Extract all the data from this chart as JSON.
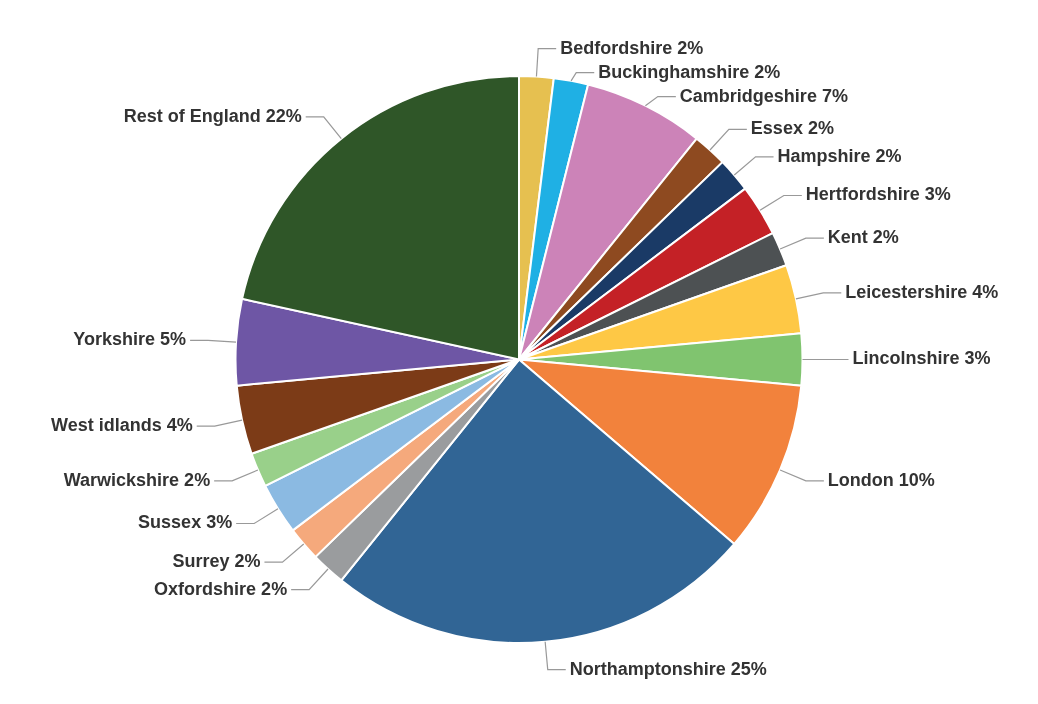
{
  "chart_data": {
    "type": "pie",
    "categories": [
      "Bedfordshire",
      "Buckinghamshire",
      "Cambridgeshire",
      "Essex",
      "Hampshire",
      "Hertfordshire",
      "Kent",
      "Leicestershire",
      "Lincolnshire",
      "London",
      "Northamptonshire",
      "Oxfordshire",
      "Surrey",
      "Sussex",
      "Warwickshire",
      "West idlands",
      "Yorkshire",
      "Rest of England"
    ],
    "values": [
      2,
      2,
      7,
      2,
      2,
      3,
      2,
      4,
      3,
      10,
      25,
      2,
      2,
      3,
      2,
      4,
      5,
      22
    ],
    "value_labels": [
      "2%",
      "2%",
      "7%",
      "2%",
      "2%",
      "3%",
      "2%",
      "4%",
      "3%",
      "10%",
      "25%",
      "2%",
      "2%",
      "3%",
      "2%",
      "4%",
      "5%",
      "22%"
    ],
    "colors": [
      "#e6c050",
      "#1fb0e4",
      "#cc83b8",
      "#8e4a20",
      "#1a3a66",
      "#c42126",
      "#4d5153",
      "#fec845",
      "#80c46f",
      "#f2823c",
      "#316595",
      "#9a9c9e",
      "#f5a97c",
      "#8bbae2",
      "#99d08a",
      "#7c3b17",
      "#6e56a5",
      "#2f5628"
    ],
    "legend": false
  }
}
